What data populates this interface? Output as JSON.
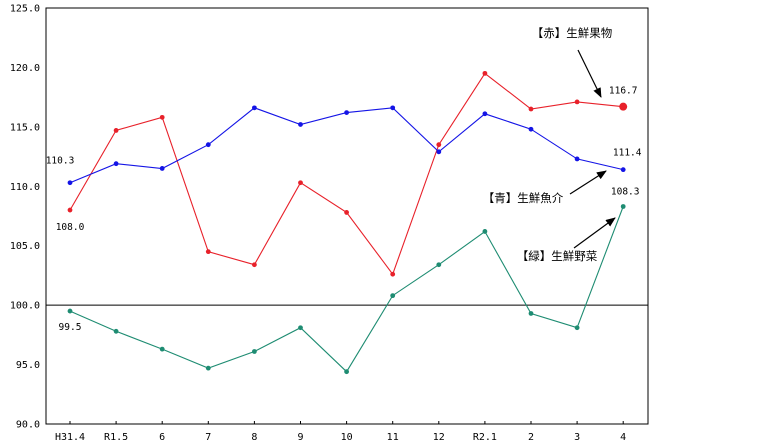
{
  "chart_data": {
    "type": "line",
    "categories": [
      "H31.4",
      "R1.5",
      "6",
      "7",
      "8",
      "9",
      "10",
      "11",
      "12",
      "R2.1",
      "2",
      "3",
      "4"
    ],
    "ylim": [
      90.0,
      125.0
    ],
    "yticks": [
      "125.0",
      "120.0",
      "115.0",
      "110.0",
      "105.0",
      "100.0",
      "95.0",
      "90.0"
    ],
    "reference_line": 100.0,
    "grid": false,
    "series": [
      {
        "key": "fruit",
        "name": "【赤】生鮮果物",
        "color": "#e8212a",
        "values": [
          108.0,
          114.7,
          115.8,
          104.5,
          103.4,
          110.3,
          107.8,
          102.6,
          113.5,
          119.5,
          116.5,
          117.1,
          116.7
        ]
      },
      {
        "key": "fish",
        "name": "【青】生鮮魚介",
        "color": "#1414e6",
        "values": [
          110.3,
          111.9,
          111.5,
          113.5,
          116.6,
          115.2,
          116.2,
          116.6,
          112.9,
          116.1,
          114.8,
          112.3,
          111.4
        ]
      },
      {
        "key": "veg",
        "name": "【緑】生鮮野菜",
        "color": "#1e8c72",
        "values": [
          99.5,
          97.8,
          96.3,
          94.7,
          96.1,
          98.1,
          94.4,
          100.8,
          103.4,
          106.2,
          99.3,
          98.1,
          108.3
        ]
      }
    ],
    "data_labels": [
      {
        "text": "108.0",
        "series": "fruit",
        "index": 0
      },
      {
        "text": "110.3",
        "series": "fish",
        "index": 0
      },
      {
        "text": "99.5",
        "series": "veg",
        "index": 0
      },
      {
        "text": "116.7",
        "series": "fruit",
        "index": 12
      },
      {
        "text": "111.4",
        "series": "fish",
        "index": 12
      },
      {
        "text": "108.3",
        "series": "veg",
        "index": 12
      }
    ],
    "annotations": [
      {
        "text": "【赤】生鮮果物",
        "series": "fruit"
      },
      {
        "text": "【青】生鮮魚介",
        "series": "fish"
      },
      {
        "text": "【緑】生鮮野菜",
        "series": "veg"
      }
    ]
  }
}
